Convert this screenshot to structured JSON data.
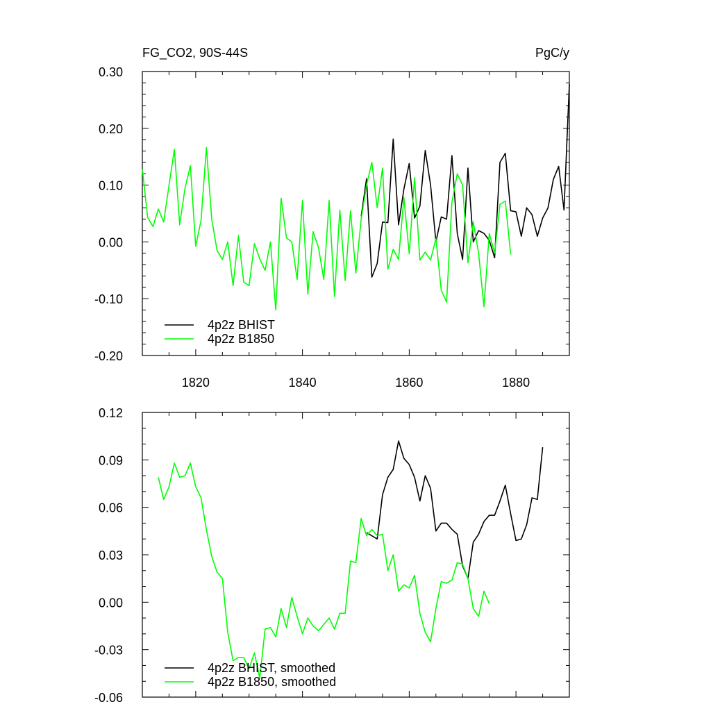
{
  "colors": {
    "bhist": "#000000",
    "b1850": "#00ff00",
    "axis": "#000000"
  },
  "chart_data": [
    {
      "type": "line",
      "title": "FG_CO2, 90S-44S",
      "units": "PgC/y",
      "xlabel": "",
      "ylabel": "",
      "xlim": [
        1810,
        1890
      ],
      "ylim": [
        -0.2,
        0.3
      ],
      "grid": false,
      "legend_placement": "bottom-left",
      "x_ticks": [
        1820,
        1840,
        1860,
        1880
      ],
      "x_tick_labels": [
        "1820",
        "1840",
        "1860",
        "1880"
      ],
      "y_ticks": [
        -0.2,
        -0.1,
        0.0,
        0.1,
        0.2,
        0.3
      ],
      "y_tick_labels": [
        "-0.20",
        "-0.10",
        "0.00",
        "0.10",
        "0.20",
        "0.30"
      ],
      "series": [
        {
          "name": "4p2z BHIST",
          "color": "#000000",
          "x_start": 1851,
          "values": [
            0.045,
            0.111,
            -0.062,
            -0.038,
            0.035,
            0.034,
            0.181,
            0.03,
            0.093,
            0.138,
            0.042,
            0.063,
            0.161,
            0.1,
            0.0,
            0.044,
            0.04,
            0.152,
            0.015,
            -0.031,
            0.13,
            0.0,
            0.02,
            0.015,
            0.003,
            -0.028,
            0.14,
            0.156,
            0.055,
            0.053,
            0.01,
            0.06,
            0.048,
            0.01,
            0.042,
            0.06,
            0.11,
            0.133,
            0.056,
            0.278
          ]
        },
        {
          "name": "4p2z B1850",
          "color": "#00ff00",
          "x_start": 1810,
          "values": [
            0.128,
            0.043,
            0.027,
            0.058,
            0.035,
            0.1,
            0.163,
            0.03,
            0.095,
            0.134,
            -0.008,
            0.038,
            0.166,
            0.04,
            -0.015,
            -0.031,
            0.0,
            -0.077,
            0.011,
            -0.071,
            -0.077,
            -0.003,
            -0.03,
            -0.05,
            0.0,
            -0.12,
            0.077,
            0.007,
            0.0,
            -0.066,
            0.073,
            -0.092,
            0.018,
            -0.01,
            -0.066,
            0.073,
            -0.096,
            0.056,
            -0.068,
            0.055,
            -0.055,
            0.04,
            0.1,
            0.14,
            0.06,
            0.13,
            -0.048,
            -0.013,
            -0.031,
            0.078,
            -0.021,
            0.113,
            -0.032,
            -0.018,
            -0.032,
            0.006,
            -0.085,
            -0.106,
            0.07,
            0.12,
            0.1,
            -0.037,
            0.035,
            -0.02,
            -0.114,
            0.015,
            -0.02,
            0.066,
            0.072,
            -0.022
          ]
        }
      ]
    },
    {
      "type": "line",
      "title": "",
      "xlabel": "",
      "ylabel": "",
      "xlim": [
        1810,
        1890
      ],
      "ylim": [
        -0.06,
        0.12
      ],
      "grid": false,
      "legend_placement": "bottom-left",
      "x_ticks": [
        1820,
        1840,
        1860,
        1880
      ],
      "x_tick_labels": [],
      "y_ticks": [
        -0.06,
        -0.03,
        0.0,
        0.03,
        0.06,
        0.09,
        0.12
      ],
      "y_tick_labels": [
        "-0.06",
        "-0.03",
        "0.00",
        "0.03",
        "0.06",
        "0.09",
        "0.12"
      ],
      "series": [
        {
          "name": "4p2z BHIST, smoothed",
          "color": "#000000",
          "x_start": 1852,
          "values": [
            0.044,
            0.042,
            0.04,
            0.068,
            0.079,
            0.084,
            0.102,
            0.091,
            0.087,
            0.079,
            0.064,
            0.08,
            0.072,
            0.045,
            0.05,
            0.05,
            0.046,
            0.043,
            0.023,
            0.015,
            0.038,
            0.043,
            0.051,
            0.055,
            0.055,
            0.064,
            0.074,
            0.056,
            0.039,
            0.04,
            0.049,
            0.066,
            0.065,
            0.098
          ]
        },
        {
          "name": "4p2z B1850, smoothed",
          "color": "#00ff00",
          "x_start": 1813,
          "values": [
            0.079,
            0.065,
            0.073,
            0.088,
            0.079,
            0.08,
            0.088,
            0.073,
            0.066,
            0.046,
            0.029,
            0.019,
            0.015,
            -0.019,
            -0.037,
            -0.035,
            -0.035,
            -0.042,
            -0.032,
            -0.048,
            -0.017,
            -0.016,
            -0.022,
            -0.004,
            -0.016,
            0.003,
            -0.009,
            -0.02,
            -0.01,
            -0.015,
            -0.018,
            -0.014,
            -0.01,
            -0.017,
            -0.007,
            -0.007,
            0.026,
            0.025,
            0.053,
            0.042,
            0.046,
            0.042,
            0.043,
            0.02,
            0.03,
            0.007,
            0.011,
            0.009,
            0.017,
            -0.007,
            -0.019,
            -0.025,
            -0.004,
            0.013,
            0.012,
            0.014,
            0.025,
            0.024,
            0.015,
            -0.004,
            -0.009,
            0.007,
            -0.001
          ]
        }
      ]
    }
  ]
}
